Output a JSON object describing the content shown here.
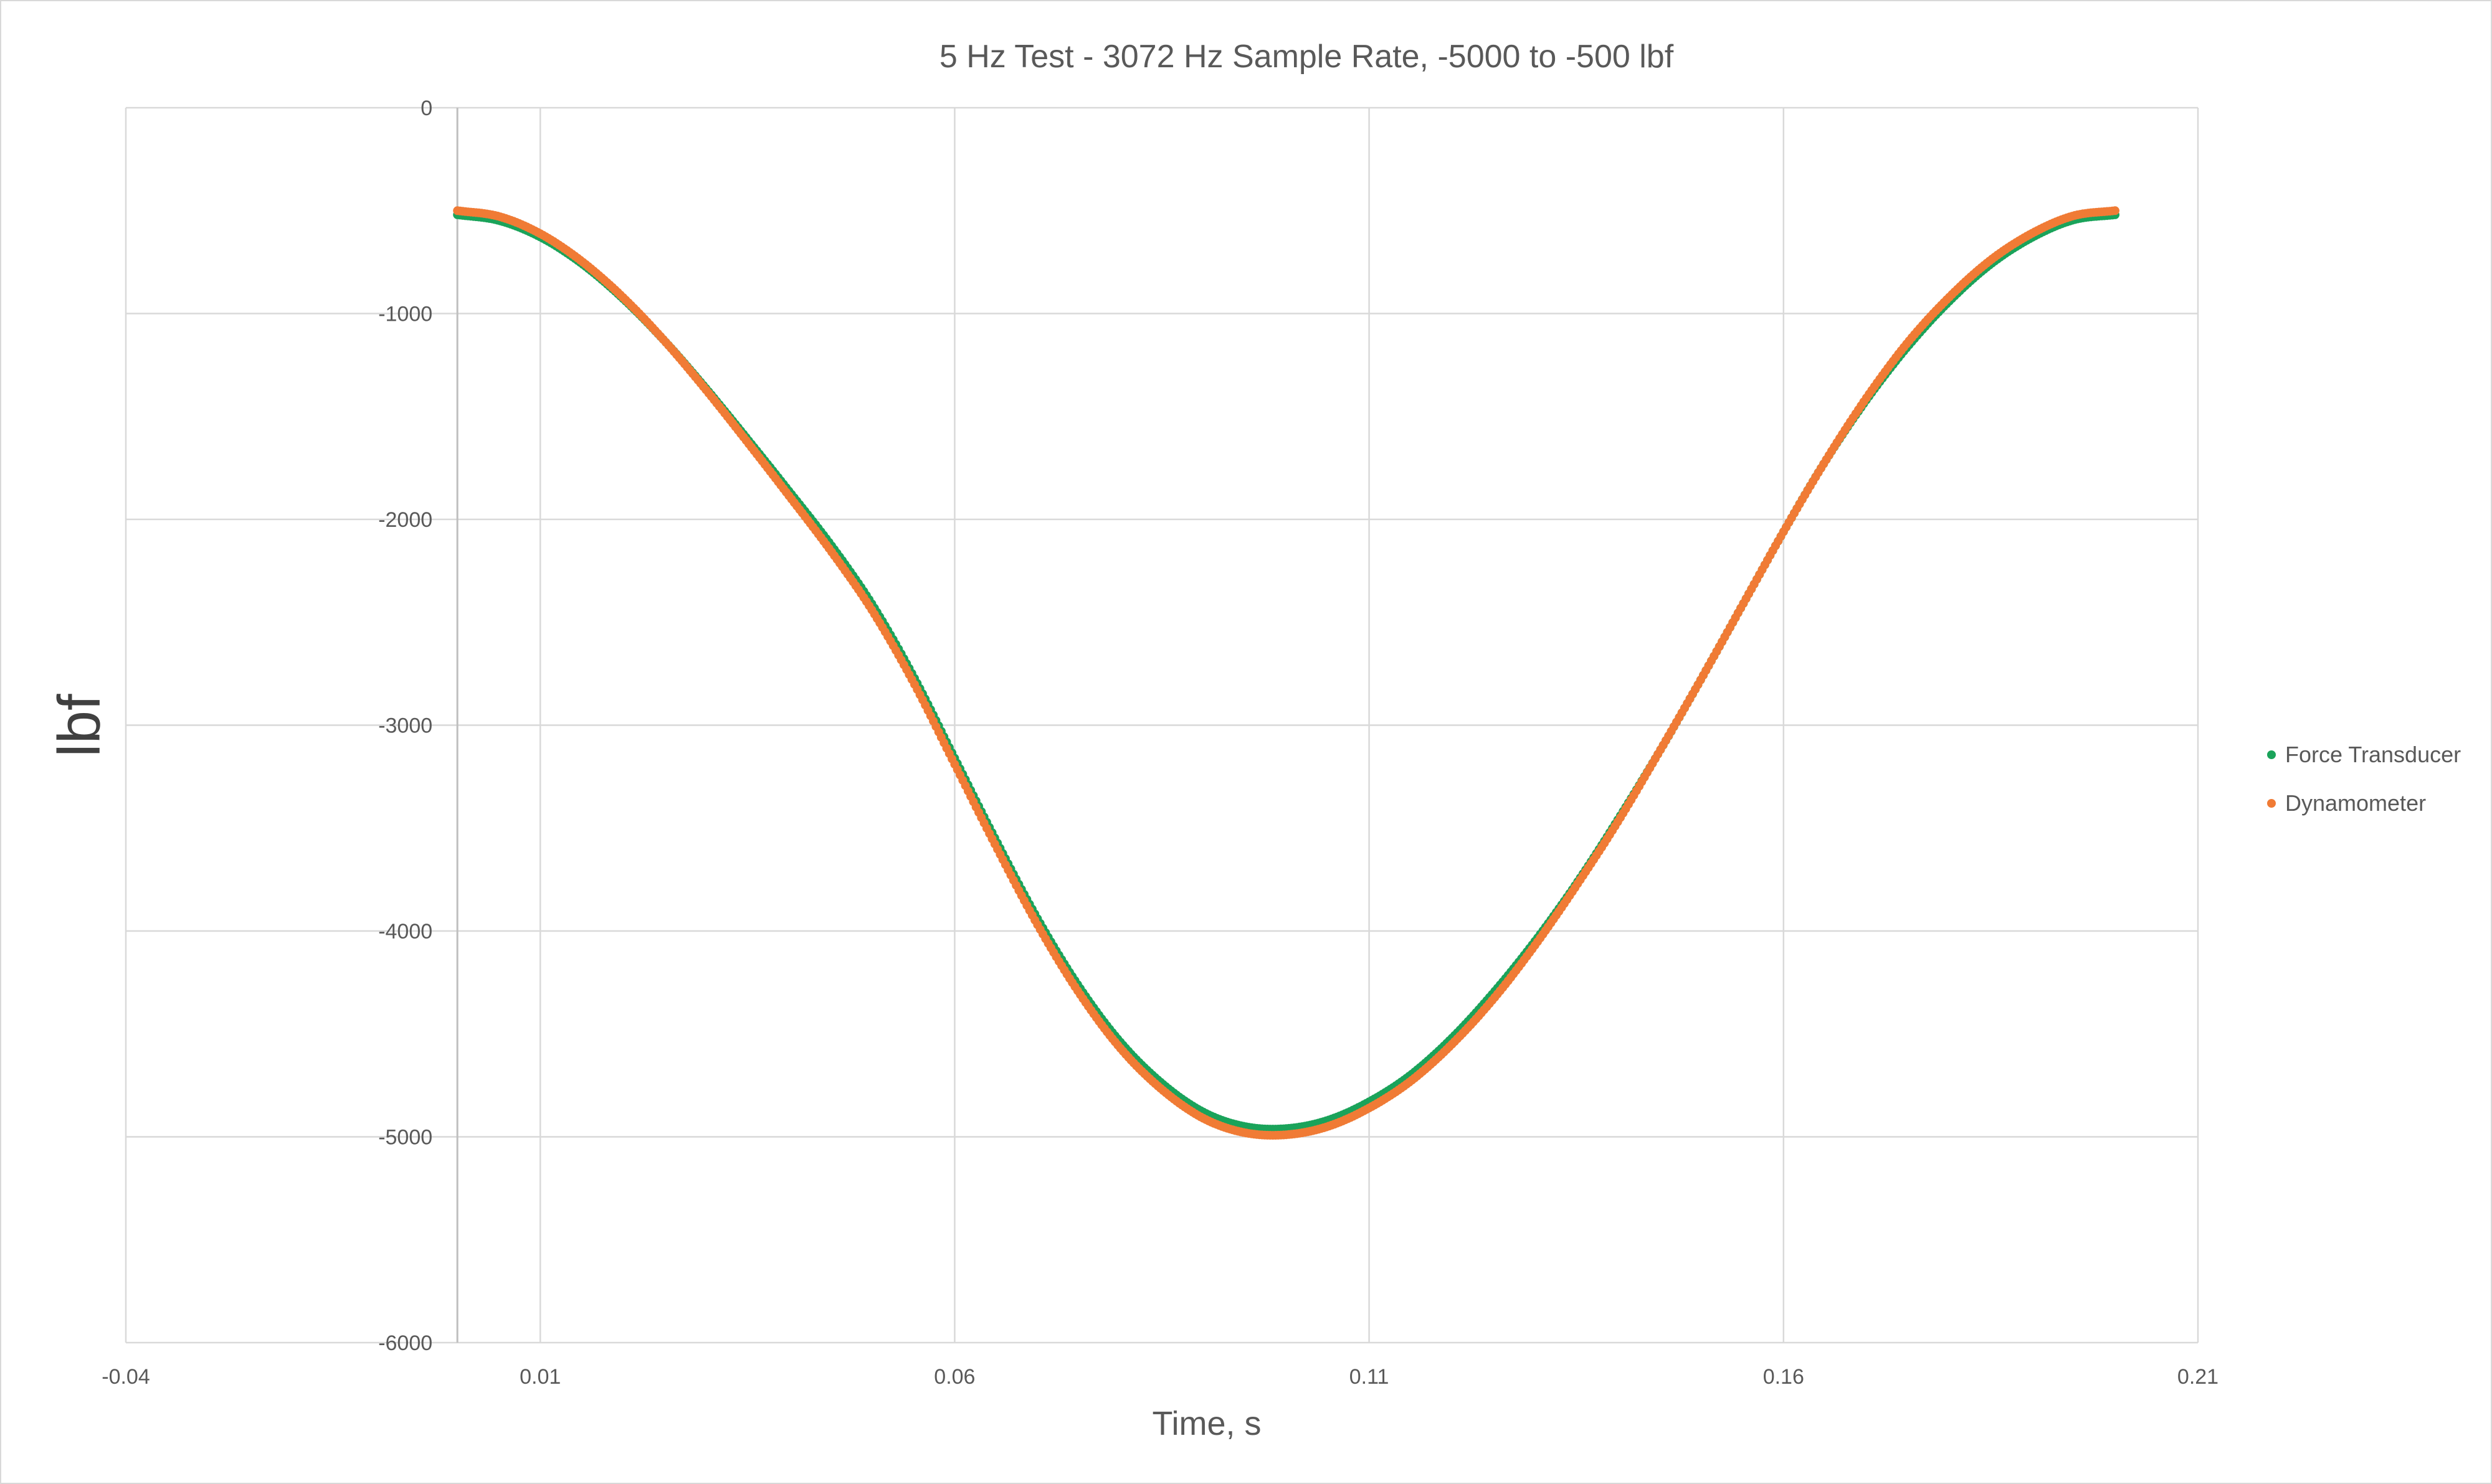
{
  "chart_data": {
    "type": "scatter",
    "title": "5 Hz Test - 3072 Hz Sample Rate, -5000 to -500 lbf",
    "xlabel": "Time, s",
    "ylabel": "lbf",
    "xlim": [
      -0.04,
      0.21
    ],
    "ylim": [
      -6000,
      0
    ],
    "x_ticks": [
      -0.04,
      0.01,
      0.06,
      0.11,
      0.16,
      0.21
    ],
    "x_tick_labels": [
      "-0.04",
      "0.01",
      "0.06",
      "0.11",
      "0.16",
      "0.21"
    ],
    "y_ticks": [
      0,
      -1000,
      -2000,
      -3000,
      -4000,
      -5000,
      -6000
    ],
    "y_tick_labels": [
      "0",
      "-1000",
      "-2000",
      "-3000",
      "-4000",
      "-5000",
      "-6000"
    ],
    "grid": true,
    "legend_position": "right",
    "series": [
      {
        "name": "Force Transducer",
        "color": "#1aa35a",
        "x": [
          0.0,
          0.005,
          0.01,
          0.015,
          0.02,
          0.025,
          0.03,
          0.035,
          0.04,
          0.045,
          0.05,
          0.055,
          0.06,
          0.065,
          0.07,
          0.075,
          0.08,
          0.085,
          0.09,
          0.095,
          0.1,
          0.105,
          0.11,
          0.115,
          0.12,
          0.125,
          0.13,
          0.135,
          0.14,
          0.145,
          0.15,
          0.155,
          0.16,
          0.165,
          0.17,
          0.175,
          0.18,
          0.185,
          0.19,
          0.195,
          0.2
        ],
        "y": [
          -520,
          -548,
          -628,
          -757,
          -928,
          -1133,
          -1364,
          -1610,
          -1862,
          -2120,
          -2410,
          -2760,
          -3160,
          -3560,
          -3940,
          -4270,
          -4540,
          -4740,
          -4880,
          -4950,
          -4960,
          -4920,
          -4830,
          -4700,
          -4520,
          -4300,
          -4050,
          -3770,
          -3460,
          -3130,
          -2780,
          -2420,
          -2060,
          -1720,
          -1420,
          -1160,
          -940,
          -760,
          -630,
          -545,
          -520
        ]
      },
      {
        "name": "Dynamometer",
        "color": "#f07b35",
        "x": [
          0.0,
          0.005,
          0.01,
          0.015,
          0.02,
          0.025,
          0.03,
          0.035,
          0.04,
          0.045,
          0.05,
          0.055,
          0.06,
          0.065,
          0.07,
          0.075,
          0.08,
          0.085,
          0.09,
          0.095,
          0.1,
          0.105,
          0.11,
          0.115,
          0.12,
          0.125,
          0.13,
          0.135,
          0.14,
          0.145,
          0.15,
          0.155,
          0.16,
          0.165,
          0.17,
          0.175,
          0.18,
          0.185,
          0.19,
          0.195,
          0.2
        ],
        "y": [
          -500,
          -528,
          -612,
          -746,
          -922,
          -1133,
          -1371,
          -1625,
          -1885,
          -2150,
          -2440,
          -2790,
          -3190,
          -3590,
          -3970,
          -4300,
          -4570,
          -4770,
          -4910,
          -4980,
          -4990,
          -4950,
          -4860,
          -4730,
          -4550,
          -4330,
          -4070,
          -3780,
          -3470,
          -3130,
          -2780,
          -2420,
          -2060,
          -1720,
          -1410,
          -1140,
          -920,
          -740,
          -610,
          -525,
          -500
        ]
      }
    ]
  }
}
